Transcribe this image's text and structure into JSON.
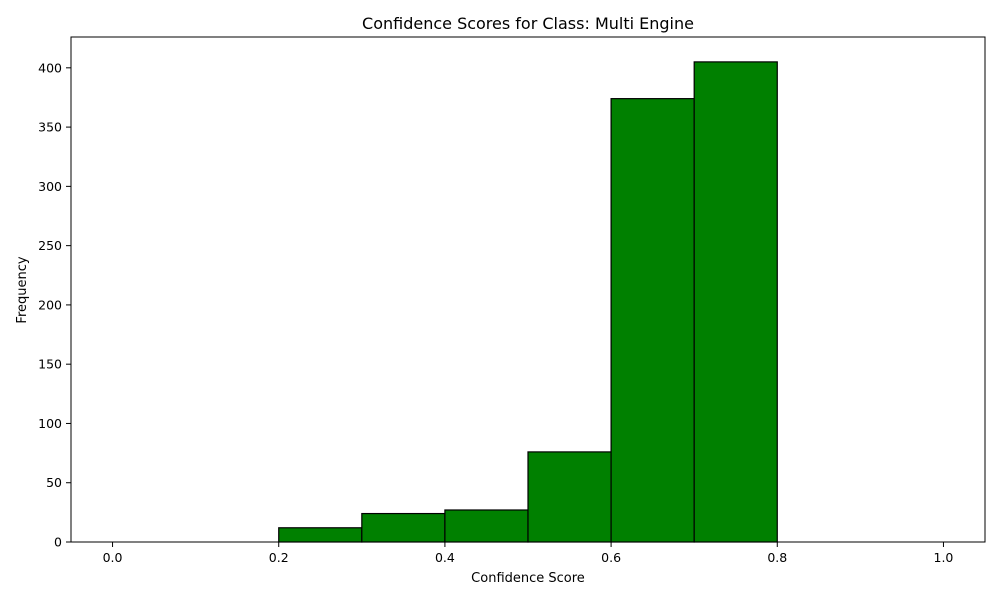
{
  "chart_data": {
    "type": "bar",
    "title": "Confidence Scores for Class: Multi Engine",
    "xlabel": "Confidence Score",
    "ylabel": "Frequency",
    "bin_edges": [
      0.0,
      0.1,
      0.2,
      0.3,
      0.4,
      0.5,
      0.6,
      0.7,
      0.8,
      0.9,
      1.0
    ],
    "values": [
      0,
      0,
      12,
      24,
      27,
      76,
      374,
      405,
      0,
      0
    ],
    "xlim": [
      -0.05,
      1.05
    ],
    "ylim": [
      0,
      426
    ],
    "xticks": [
      "0.0",
      "0.2",
      "0.4",
      "0.6",
      "0.8",
      "1.0"
    ],
    "yticks": [
      "0",
      "50",
      "100",
      "150",
      "200",
      "250",
      "300",
      "350",
      "400"
    ],
    "grid": false,
    "bar_color": "#008000",
    "edge_color": "#000000"
  }
}
